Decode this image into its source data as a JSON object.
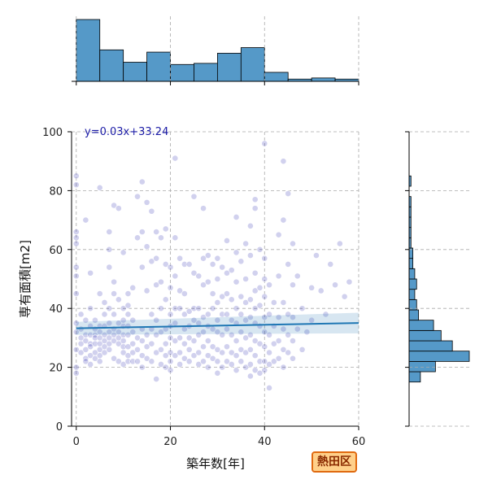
{
  "chart_data": {
    "type": "scatter",
    "xlabel": "築年数[年]",
    "ylabel": "専有面積[m2]",
    "xlim": [
      -1,
      60
    ],
    "ylim": [
      0,
      100
    ],
    "x_ticks": [
      0,
      20,
      40,
      60
    ],
    "y_ticks": [
      0,
      20,
      40,
      60,
      80,
      100
    ],
    "grid": true,
    "regression": {
      "slope": 0.03,
      "intercept": 33.24,
      "label": "y=0.03x+33.24",
      "color": "#1f77b4"
    },
    "point_color": "#0000a0",
    "hist_color": "#5599c8",
    "x_hist": {
      "bin_edges": [
        0,
        5,
        10,
        15,
        20,
        25,
        30,
        35,
        40,
        45,
        50,
        55,
        60
      ],
      "counts": [
        55,
        28,
        17,
        26,
        15,
        16,
        25,
        30,
        8,
        2,
        3,
        2
      ]
    },
    "y_hist": {
      "bin_edges": [
        15,
        18.5,
        22,
        25.5,
        29,
        32.5,
        36,
        39.5,
        43,
        46.5,
        50,
        53.5,
        57,
        60.5,
        64,
        67.5,
        71,
        74.5,
        78,
        81.5,
        85,
        88.5
      ],
      "counts": [
        6,
        14,
        32,
        23,
        17,
        13,
        5,
        4,
        3,
        4,
        3,
        2,
        2,
        1,
        1,
        1,
        1,
        1,
        0,
        1,
        0,
        1
      ]
    },
    "points": [
      [
        0,
        85
      ],
      [
        0,
        82
      ],
      [
        0,
        66
      ],
      [
        0,
        64
      ],
      [
        0,
        62
      ],
      [
        0,
        54
      ],
      [
        0,
        51
      ],
      [
        0,
        45
      ],
      [
        0,
        35
      ],
      [
        0,
        32
      ],
      [
        0,
        26
      ],
      [
        0,
        20
      ],
      [
        0,
        18
      ],
      [
        1,
        38
      ],
      [
        1,
        33
      ],
      [
        1,
        30
      ],
      [
        1,
        28
      ],
      [
        1,
        25
      ],
      [
        2,
        70
      ],
      [
        2,
        36
      ],
      [
        2,
        31
      ],
      [
        2,
        29
      ],
      [
        2,
        26
      ],
      [
        2,
        23
      ],
      [
        2,
        22
      ],
      [
        3,
        52
      ],
      [
        3,
        40
      ],
      [
        3,
        34
      ],
      [
        3,
        31
      ],
      [
        3,
        28
      ],
      [
        3,
        27
      ],
      [
        3,
        24
      ],
      [
        3,
        21
      ],
      [
        4,
        36
      ],
      [
        4,
        33
      ],
      [
        4,
        31
      ],
      [
        4,
        30
      ],
      [
        4,
        28
      ],
      [
        4,
        25
      ],
      [
        4,
        23
      ],
      [
        5,
        81
      ],
      [
        5,
        45
      ],
      [
        5,
        34
      ],
      [
        5,
        32
      ],
      [
        5,
        30
      ],
      [
        5,
        28
      ],
      [
        5,
        26
      ],
      [
        5,
        24
      ],
      [
        5,
        22
      ],
      [
        6,
        42
      ],
      [
        6,
        38
      ],
      [
        6,
        34
      ],
      [
        6,
        31
      ],
      [
        6,
        29
      ],
      [
        6,
        27
      ],
      [
        6,
        25
      ],
      [
        7,
        66
      ],
      [
        7,
        60
      ],
      [
        7,
        54
      ],
      [
        7,
        40
      ],
      [
        7,
        35
      ],
      [
        7,
        32
      ],
      [
        7,
        30
      ],
      [
        7,
        28
      ],
      [
        7,
        26
      ],
      [
        8,
        75
      ],
      [
        8,
        49
      ],
      [
        8,
        45
      ],
      [
        8,
        38
      ],
      [
        8,
        33
      ],
      [
        8,
        31
      ],
      [
        8,
        29
      ],
      [
        8,
        23
      ],
      [
        9,
        74
      ],
      [
        9,
        43
      ],
      [
        9,
        35
      ],
      [
        9,
        32
      ],
      [
        9,
        30
      ],
      [
        9,
        28
      ],
      [
        9,
        22
      ],
      [
        10,
        59
      ],
      [
        10,
        40
      ],
      [
        10,
        36
      ],
      [
        10,
        34
      ],
      [
        10,
        31
      ],
      [
        10,
        29
      ],
      [
        10,
        27
      ],
      [
        10,
        25
      ],
      [
        10,
        21
      ],
      [
        11,
        45
      ],
      [
        11,
        41
      ],
      [
        11,
        38
      ],
      [
        11,
        34
      ],
      [
        11,
        31
      ],
      [
        11,
        27
      ],
      [
        11,
        24
      ],
      [
        11,
        22
      ],
      [
        12,
        47
      ],
      [
        12,
        36
      ],
      [
        12,
        32
      ],
      [
        12,
        28
      ],
      [
        12,
        25
      ],
      [
        12,
        22
      ],
      [
        13,
        78
      ],
      [
        13,
        64
      ],
      [
        13,
        30
      ],
      [
        13,
        26
      ],
      [
        13,
        22
      ],
      [
        14,
        83
      ],
      [
        14,
        66
      ],
      [
        14,
        54
      ],
      [
        14,
        33
      ],
      [
        14,
        29
      ],
      [
        14,
        24
      ],
      [
        14,
        20
      ],
      [
        15,
        76
      ],
      [
        15,
        61
      ],
      [
        15,
        46
      ],
      [
        15,
        31
      ],
      [
        15,
        27
      ],
      [
        15,
        23
      ],
      [
        16,
        73
      ],
      [
        16,
        56
      ],
      [
        16,
        38
      ],
      [
        16,
        33
      ],
      [
        16,
        28
      ],
      [
        16,
        22
      ],
      [
        17,
        66
      ],
      [
        17,
        57
      ],
      [
        17,
        48
      ],
      [
        17,
        36
      ],
      [
        17,
        31
      ],
      [
        17,
        25
      ],
      [
        17,
        16
      ],
      [
        18,
        64
      ],
      [
        18,
        49
      ],
      [
        18,
        40
      ],
      [
        18,
        32
      ],
      [
        18,
        26
      ],
      [
        18,
        21
      ],
      [
        19,
        67
      ],
      [
        19,
        55
      ],
      [
        19,
        43
      ],
      [
        19,
        33
      ],
      [
        19,
        28
      ],
      [
        19,
        24
      ],
      [
        19,
        20
      ],
      [
        20,
        54
      ],
      [
        20,
        47
      ],
      [
        20,
        38
      ],
      [
        20,
        34
      ],
      [
        20,
        30
      ],
      [
        20,
        25
      ],
      [
        20,
        22
      ],
      [
        20,
        19
      ],
      [
        21,
        91
      ],
      [
        21,
        64
      ],
      [
        21,
        51
      ],
      [
        21,
        40
      ],
      [
        21,
        35
      ],
      [
        21,
        29
      ],
      [
        21,
        24
      ],
      [
        22,
        57
      ],
      [
        22,
        46
      ],
      [
        22,
        40
      ],
      [
        22,
        30
      ],
      [
        22,
        25
      ],
      [
        22,
        21
      ],
      [
        23,
        55
      ],
      [
        23,
        45
      ],
      [
        23,
        38
      ],
      [
        23,
        33
      ],
      [
        23,
        28
      ],
      [
        23,
        23
      ],
      [
        24,
        55
      ],
      [
        24,
        39
      ],
      [
        24,
        34
      ],
      [
        24,
        30
      ],
      [
        24,
        26
      ],
      [
        24,
        22
      ],
      [
        25,
        78
      ],
      [
        25,
        52
      ],
      [
        25,
        40
      ],
      [
        25,
        36
      ],
      [
        25,
        29
      ],
      [
        25,
        24
      ],
      [
        26,
        51
      ],
      [
        26,
        40
      ],
      [
        26,
        35
      ],
      [
        26,
        31
      ],
      [
        26,
        25
      ],
      [
        26,
        21
      ],
      [
        27,
        74
      ],
      [
        27,
        57
      ],
      [
        27,
        48
      ],
      [
        27,
        37
      ],
      [
        27,
        32
      ],
      [
        27,
        27
      ],
      [
        27,
        22
      ],
      [
        28,
        58
      ],
      [
        28,
        49
      ],
      [
        28,
        38
      ],
      [
        28,
        34
      ],
      [
        28,
        29
      ],
      [
        28,
        24
      ],
      [
        28,
        20
      ],
      [
        29,
        55
      ],
      [
        29,
        45
      ],
      [
        29,
        40
      ],
      [
        29,
        33
      ],
      [
        29,
        27
      ],
      [
        29,
        23
      ],
      [
        30,
        57
      ],
      [
        30,
        50
      ],
      [
        30,
        42
      ],
      [
        30,
        36
      ],
      [
        30,
        32
      ],
      [
        30,
        26
      ],
      [
        30,
        22
      ],
      [
        30,
        18
      ],
      [
        31,
        54
      ],
      [
        31,
        44
      ],
      [
        31,
        38
      ],
      [
        31,
        31
      ],
      [
        31,
        25
      ],
      [
        31,
        20
      ],
      [
        32,
        63
      ],
      [
        32,
        52
      ],
      [
        32,
        45
      ],
      [
        32,
        38
      ],
      [
        32,
        33
      ],
      [
        32,
        27
      ],
      [
        32,
        22
      ],
      [
        33,
        53
      ],
      [
        33,
        43
      ],
      [
        33,
        36
      ],
      [
        33,
        31
      ],
      [
        33,
        25
      ],
      [
        33,
        21
      ],
      [
        34,
        71
      ],
      [
        34,
        59
      ],
      [
        34,
        49
      ],
      [
        34,
        40
      ],
      [
        34,
        35
      ],
      [
        34,
        29
      ],
      [
        34,
        24
      ],
      [
        34,
        19
      ],
      [
        35,
        56
      ],
      [
        35,
        44
      ],
      [
        35,
        38
      ],
      [
        35,
        32
      ],
      [
        35,
        26
      ],
      [
        35,
        22
      ],
      [
        36,
        62
      ],
      [
        36,
        50
      ],
      [
        36,
        42
      ],
      [
        36,
        36
      ],
      [
        36,
        30
      ],
      [
        36,
        25
      ],
      [
        36,
        20
      ],
      [
        37,
        68
      ],
      [
        37,
        58
      ],
      [
        37,
        43
      ],
      [
        37,
        37
      ],
      [
        37,
        31
      ],
      [
        37,
        26
      ],
      [
        37,
        21
      ],
      [
        37,
        17
      ],
      [
        38,
        77
      ],
      [
        38,
        74
      ],
      [
        38,
        52
      ],
      [
        38,
        46
      ],
      [
        38,
        40
      ],
      [
        38,
        35
      ],
      [
        38,
        29
      ],
      [
        38,
        24
      ],
      [
        38,
        19
      ],
      [
        39,
        60
      ],
      [
        39,
        47
      ],
      [
        39,
        41
      ],
      [
        39,
        34
      ],
      [
        39,
        28
      ],
      [
        39,
        22
      ],
      [
        39,
        18
      ],
      [
        40,
        96
      ],
      [
        40,
        57
      ],
      [
        40,
        50
      ],
      [
        40,
        44
      ],
      [
        40,
        37
      ],
      [
        40,
        32
      ],
      [
        40,
        27
      ],
      [
        40,
        22
      ],
      [
        40,
        19
      ],
      [
        41,
        48
      ],
      [
        41,
        38
      ],
      [
        41,
        31
      ],
      [
        41,
        25
      ],
      [
        41,
        21
      ],
      [
        41,
        13
      ],
      [
        42,
        42
      ],
      [
        42,
        34
      ],
      [
        42,
        28
      ],
      [
        42,
        22
      ],
      [
        43,
        65
      ],
      [
        43,
        51
      ],
      [
        43,
        37
      ],
      [
        43,
        29
      ],
      [
        43,
        23
      ],
      [
        44,
        90
      ],
      [
        44,
        70
      ],
      [
        44,
        42
      ],
      [
        44,
        33
      ],
      [
        44,
        26
      ],
      [
        44,
        20
      ],
      [
        45,
        79
      ],
      [
        45,
        55
      ],
      [
        45,
        38
      ],
      [
        45,
        31
      ],
      [
        45,
        25
      ],
      [
        46,
        62
      ],
      [
        46,
        48
      ],
      [
        46,
        37
      ],
      [
        46,
        29
      ],
      [
        46,
        23
      ],
      [
        47,
        51
      ],
      [
        47,
        33
      ],
      [
        48,
        40
      ],
      [
        48,
        26
      ],
      [
        49,
        32
      ],
      [
        50,
        47
      ],
      [
        50,
        36
      ],
      [
        51,
        58
      ],
      [
        52,
        46
      ],
      [
        53,
        38
      ],
      [
        54,
        55
      ],
      [
        55,
        48
      ],
      [
        56,
        62
      ],
      [
        57,
        44
      ],
      [
        58,
        49
      ]
    ]
  },
  "annotations": {
    "badge": "熱田区"
  }
}
